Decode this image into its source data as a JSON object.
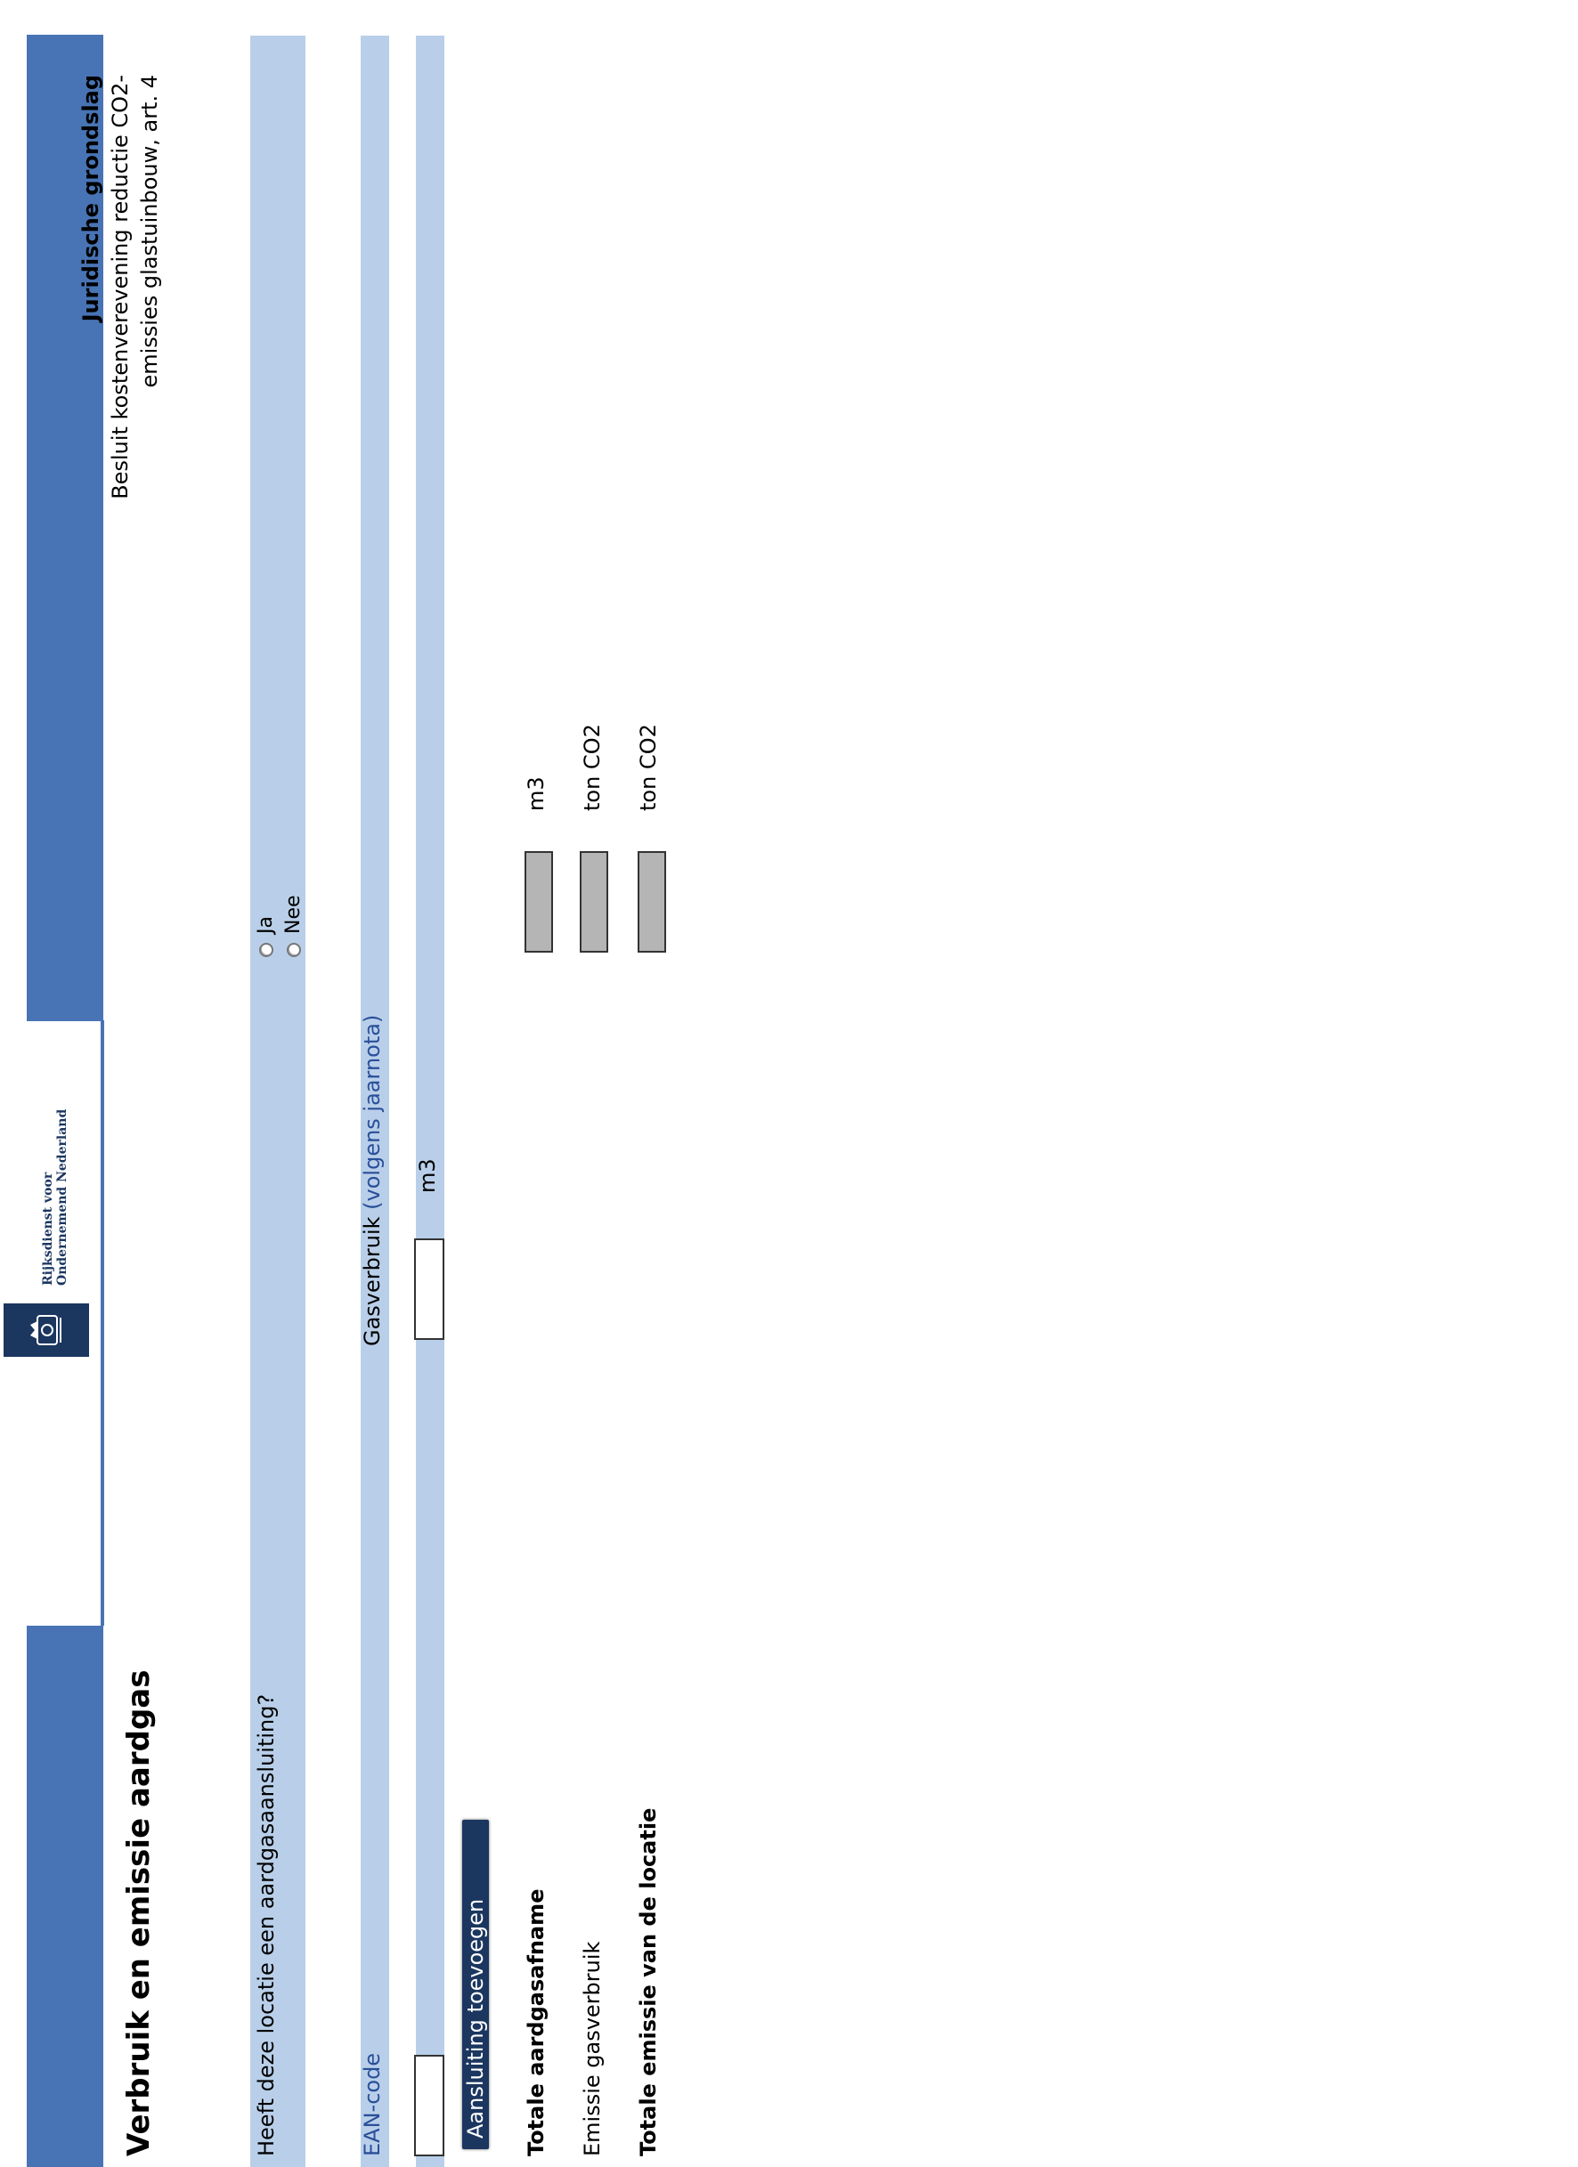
{
  "header": {
    "organization": "Rijksdienst voor Ondernemend Nederland",
    "brand_color": "#4874b5",
    "crest_color": "#1b365f",
    "crest_icon": "royal-crest-icon"
  },
  "page_title": "Verbruik en emissie aardgas",
  "legal_basis": {
    "title": "Juridische grondslag",
    "text": "Besluit kostenverevening reductie CO2-emissies glastuinbouw, art. 4"
  },
  "question": {
    "label": "Heeft deze locatie een aardgasaansluiting?",
    "options": [
      "Ja",
      "Nee"
    ],
    "selected": null
  },
  "connection_table": {
    "ean_label": "EAN-code",
    "usage_label": "Gasverbruik",
    "usage_hint": "(volgens jaarnota)",
    "ean_value": "",
    "usage_value": "",
    "usage_unit": "m3"
  },
  "add_connection_button": "Aansluiting toevoegen",
  "summary": [
    {
      "label": "Totale aardgasafname",
      "bold": true,
      "value": "",
      "unit": "m3"
    },
    {
      "label": "Emissie gasverbruik",
      "bold": false,
      "value": "",
      "unit": "ton CO2"
    },
    {
      "label": "Totale emissie van de locatie",
      "bold": true,
      "value": "",
      "unit": "ton CO2"
    }
  ]
}
